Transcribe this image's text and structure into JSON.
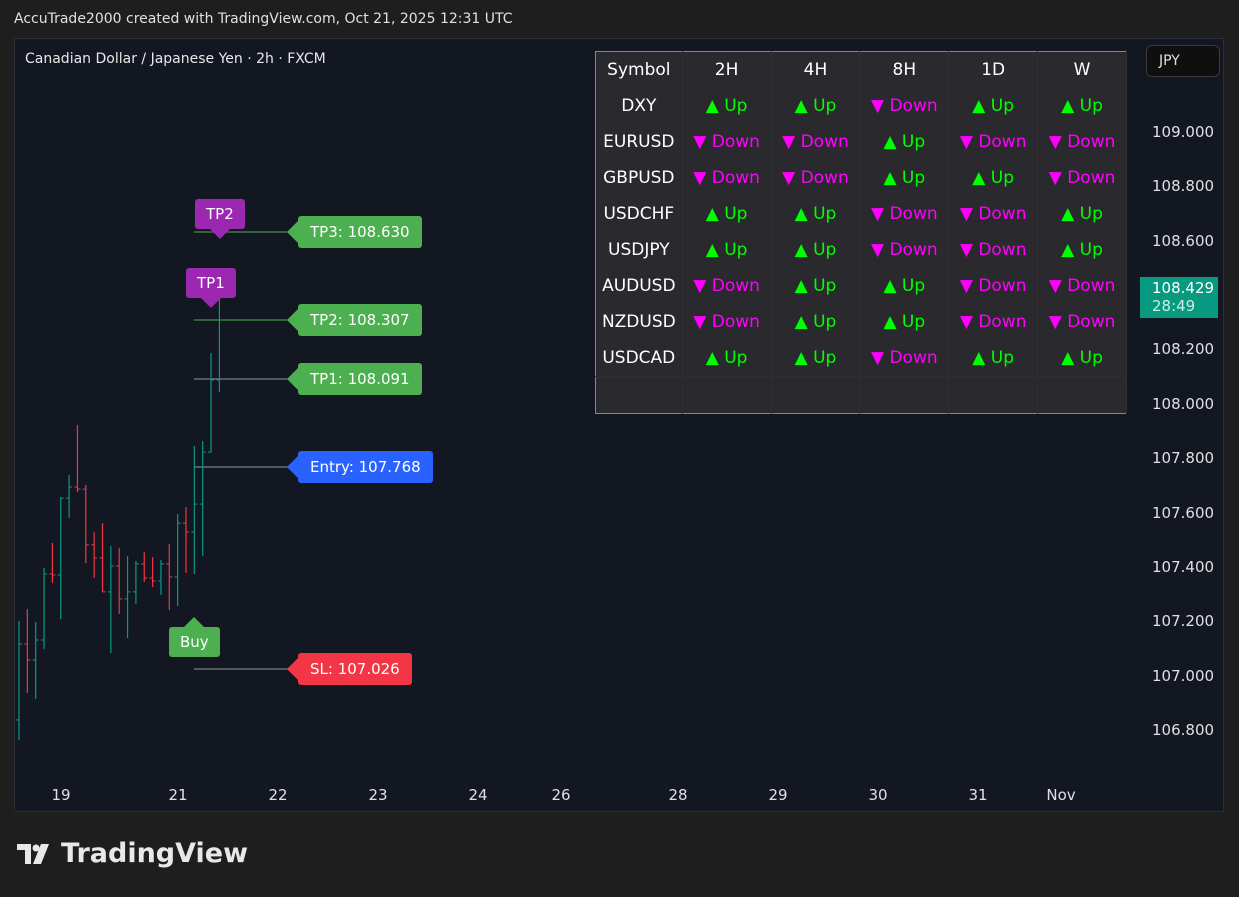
{
  "header": "AccuTrade2000 created with TradingView.com, Oct 21, 2025 12:31 UTC",
  "chart_title": "Canadian Dollar / Japanese Yen · 2h · FXCM",
  "currency": "JPY",
  "last_price": "108.429",
  "countdown": "28:49",
  "price_ticks": [
    "109.000",
    "108.800",
    "108.600",
    "108.200",
    "108.000",
    "107.800",
    "107.600",
    "107.400",
    "107.200",
    "107.000",
    "106.800"
  ],
  "time_ticks": [
    "19",
    "21",
    "22",
    "23",
    "24",
    "26",
    "28",
    "29",
    "30",
    "31",
    "Nov"
  ],
  "table": {
    "headers": [
      "Symbol",
      "2H",
      "4H",
      "8H",
      "1D",
      "W"
    ],
    "rows": [
      {
        "symbol": "DXY",
        "cells": [
          "Up",
          "Up",
          "Down",
          "Up",
          "Up"
        ]
      },
      {
        "symbol": "EURUSD",
        "cells": [
          "Down",
          "Down",
          "Up",
          "Down",
          "Down"
        ]
      },
      {
        "symbol": "GBPUSD",
        "cells": [
          "Down",
          "Down",
          "Up",
          "Up",
          "Down"
        ]
      },
      {
        "symbol": "USDCHF",
        "cells": [
          "Up",
          "Up",
          "Down",
          "Down",
          "Up"
        ]
      },
      {
        "symbol": "USDJPY",
        "cells": [
          "Up",
          "Up",
          "Down",
          "Down",
          "Up"
        ]
      },
      {
        "symbol": "AUDUSD",
        "cells": [
          "Down",
          "Up",
          "Up",
          "Down",
          "Down"
        ]
      },
      {
        "symbol": "NZDUSD",
        "cells": [
          "Down",
          "Up",
          "Up",
          "Down",
          "Down"
        ]
      },
      {
        "symbol": "USDCAD",
        "cells": [
          "Up",
          "Up",
          "Down",
          "Up",
          "Up"
        ]
      }
    ]
  },
  "levels": {
    "tp3": "TP3: 108.630",
    "tp2": "TP2: 108.307",
    "tp1": "TP1: 108.091",
    "entry": "Entry: 107.768",
    "sl": "SL: 107.026"
  },
  "markers": {
    "tp2": "TP2",
    "tp1": "TP1",
    "buy": "Buy"
  },
  "logo": "TradingView",
  "colors": {
    "up": "#089981",
    "down": "#f23645",
    "bg": "#131722"
  },
  "ohlc": [
    [
      106.837,
      107.201,
      106.763,
      107.116
    ],
    [
      107.116,
      107.245,
      106.936,
      107.057
    ],
    [
      107.057,
      107.197,
      106.914,
      107.131
    ],
    [
      107.131,
      107.396,
      107.098,
      107.374
    ],
    [
      107.374,
      107.488,
      107.341,
      107.37
    ],
    [
      107.37,
      107.657,
      107.208,
      107.653
    ],
    [
      107.653,
      107.738,
      107.58,
      107.694
    ],
    [
      107.694,
      107.922,
      107.675,
      107.686
    ],
    [
      107.686,
      107.701,
      107.414,
      107.481
    ],
    [
      107.481,
      107.528,
      107.359,
      107.433
    ],
    [
      107.433,
      107.561,
      107.308,
      107.308
    ],
    [
      107.308,
      107.477,
      107.083,
      107.403
    ],
    [
      107.403,
      107.47,
      107.227,
      107.282
    ],
    [
      107.282,
      107.44,
      107.138,
      107.308
    ],
    [
      107.308,
      107.422,
      107.264,
      107.411
    ],
    [
      107.411,
      107.455,
      107.345,
      107.359
    ],
    [
      107.359,
      107.436,
      107.326,
      107.348
    ],
    [
      107.348,
      107.425,
      107.297,
      107.411
    ],
    [
      107.411,
      107.484,
      107.241,
      107.363
    ],
    [
      107.363,
      107.595,
      107.256,
      107.561
    ],
    [
      107.561,
      107.62,
      107.378,
      107.528
    ],
    [
      107.528,
      107.845,
      107.374,
      107.631
    ],
    [
      107.631,
      107.863,
      107.44,
      107.822
    ],
    [
      107.822,
      108.187,
      107.822,
      108.088
    ],
    [
      108.088,
      108.437,
      108.043,
      108.429
    ]
  ]
}
